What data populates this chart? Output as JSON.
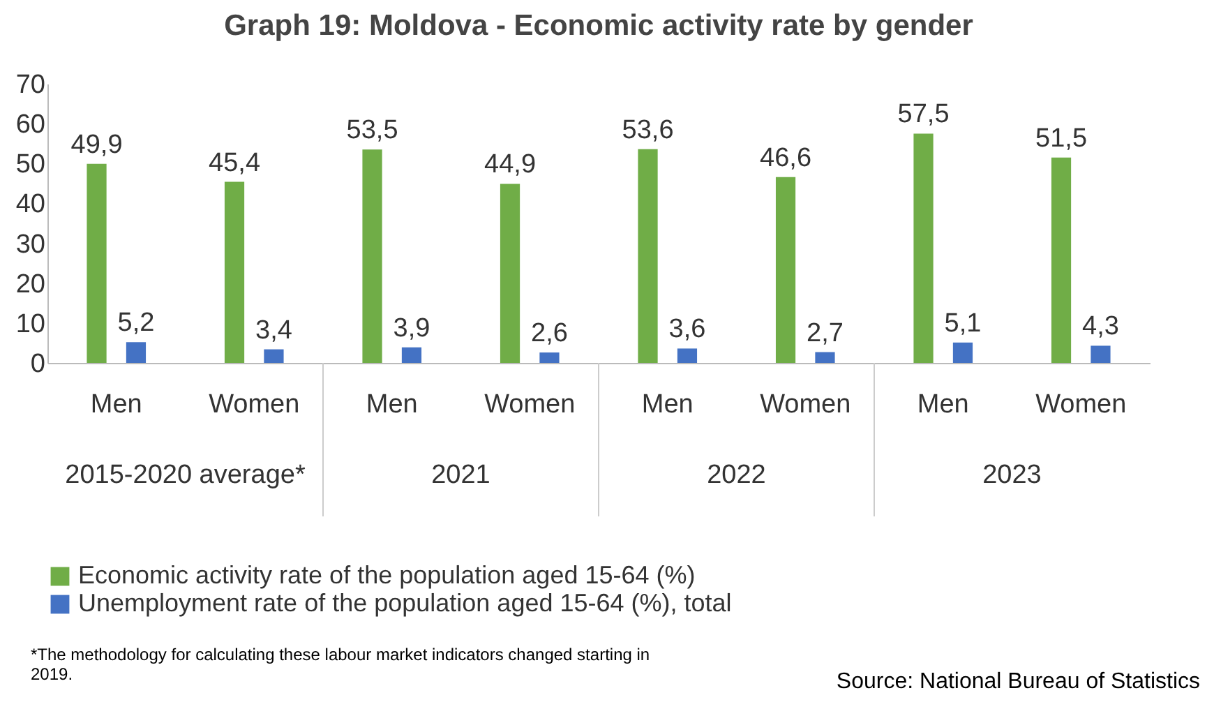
{
  "chart_data": {
    "type": "bar",
    "title": "Graph 19: Moldova - Economic activity rate by gender",
    "categories": [
      "Men",
      "Women",
      "Men",
      "Women",
      "Men",
      "Women",
      "Men",
      "Women"
    ],
    "series": [
      {
        "name": "Economic activity rate of the population aged 15-64 (%)",
        "color": "#70ad47",
        "values": [
          49.9,
          45.4,
          53.5,
          44.9,
          53.6,
          46.6,
          57.5,
          51.5
        ],
        "value_labels": [
          "49,9",
          "45,4",
          "53,5",
          "44,9",
          "53,6",
          "46,6",
          "57,5",
          "51,5"
        ]
      },
      {
        "name": "Unemployment rate of the population aged 15-64 (%), total",
        "color": "#4472c4",
        "values": [
          5.2,
          3.4,
          3.9,
          2.6,
          3.6,
          2.7,
          5.1,
          4.3
        ],
        "value_labels": [
          "5,2",
          "3,4",
          "3,9",
          "2,6",
          "3,6",
          "2,7",
          "5,1",
          "4,3"
        ]
      }
    ],
    "ylim": [
      0,
      70
    ],
    "yticks": [
      0,
      10,
      20,
      30,
      40,
      50,
      60,
      70
    ],
    "grid": false,
    "legend": "bottom",
    "annotations": [
      "2015-2020 average*",
      "2021",
      "2022",
      "2023",
      "*The methodology  for calculating these labour market indicators changed starting in 2019.",
      "Source: National Bureau of Statistics"
    ]
  }
}
